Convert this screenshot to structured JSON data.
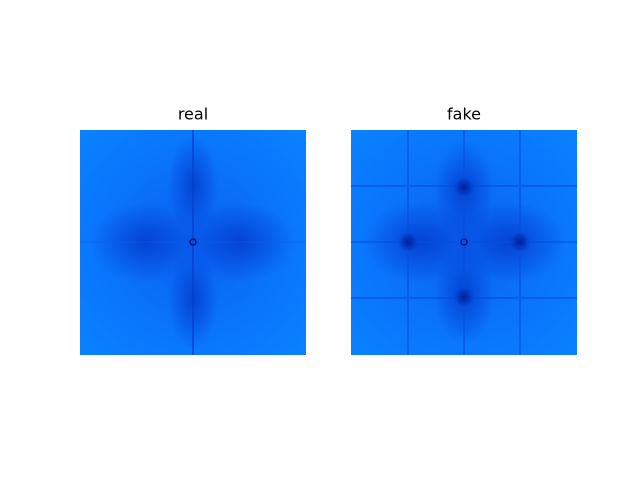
{
  "chart_data": [
    {
      "type": "image",
      "title": "real"
    },
    {
      "type": "image",
      "title": "fake"
    }
  ]
}
